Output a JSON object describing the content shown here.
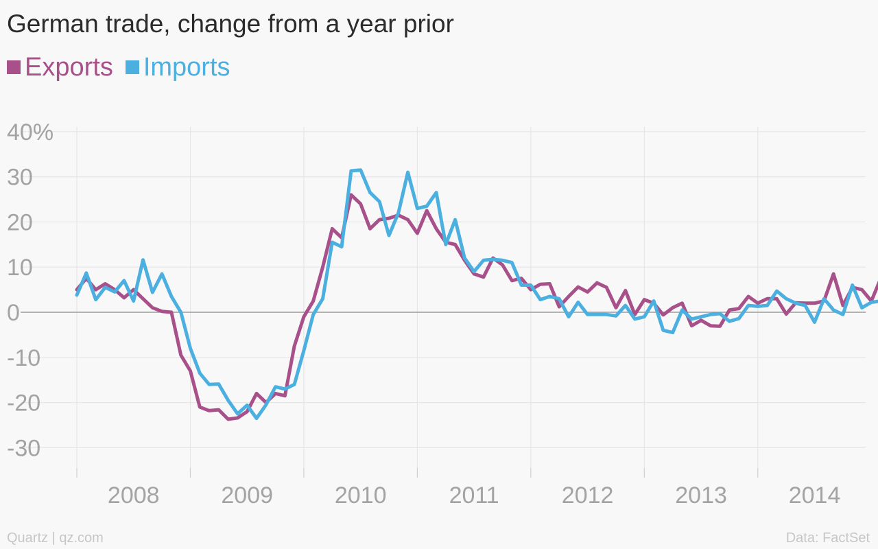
{
  "title": "German trade, change from a year prior",
  "legend": [
    {
      "label": "Exports",
      "color": "#a8508a"
    },
    {
      "label": "Imports",
      "color": "#4bafe0"
    }
  ],
  "footer": {
    "source_left": "Quartz | qz.com",
    "source_right": "Data: FactSet"
  },
  "chart_data": {
    "type": "line",
    "title": "German trade, change from a year prior",
    "xlabel": "",
    "ylabel": "",
    "x_ticks": [
      "2008",
      "2009",
      "2010",
      "2011",
      "2012",
      "2013",
      "2014"
    ],
    "y_ticks": [
      {
        "value": 40,
        "label": "40%"
      },
      {
        "value": 30,
        "label": "30"
      },
      {
        "value": 20,
        "label": "20"
      },
      {
        "value": 10,
        "label": "10"
      },
      {
        "value": 0,
        "label": "0"
      },
      {
        "value": -10,
        "label": "-10"
      },
      {
        "value": -20,
        "label": "-20"
      },
      {
        "value": -30,
        "label": "-30"
      }
    ],
    "ylim": [
      -35,
      42
    ],
    "xlim": [
      2008,
      2014.95
    ],
    "grid": true,
    "legend_position": "top-left",
    "x_start": "2008-01",
    "x_step": "monthly",
    "series": [
      {
        "name": "Exports",
        "color": "#a8508a",
        "values": [
          5,
          7.5,
          5,
          6.3,
          5,
          3.2,
          5,
          3,
          1,
          0.2,
          0,
          -9.5,
          -13,
          -21,
          -21.8,
          -21.6,
          -23.7,
          -23.4,
          -22,
          -18,
          -20,
          -18,
          -18.5,
          -7.5,
          -1,
          2.5,
          10,
          18.5,
          16.5,
          26,
          24,
          18.5,
          20.5,
          20.8,
          21.5,
          20.5,
          17.5,
          22.5,
          18.5,
          15.5,
          15,
          11.5,
          8.5,
          7.8,
          12,
          10.5,
          7,
          7.5,
          5,
          6.2,
          6.3,
          1.2,
          3.5,
          5.6,
          4.5,
          6.5,
          5.5,
          1,
          4.8,
          -0.5,
          2.8,
          2,
          -0.6,
          1,
          2,
          -3,
          -1.8,
          -3,
          -3.1,
          0.5,
          0.8,
          3.5,
          2,
          3,
          3,
          -0.4,
          2.1,
          2,
          2,
          2.5,
          8.5,
          1.5,
          5.5,
          5,
          2.5,
          7.5
        ]
      },
      {
        "name": "Imports",
        "color": "#4bafe0",
        "values": [
          3.8,
          8.7,
          2.8,
          5.5,
          4.5,
          7,
          2.5,
          11.6,
          4.4,
          8.5,
          3.5,
          0,
          -8,
          -13.5,
          -16,
          -15.9,
          -19.5,
          -22.5,
          -20.6,
          -23.5,
          -20.5,
          -16.5,
          -17,
          -16,
          -8.5,
          -0.5,
          3,
          15.5,
          14.5,
          31.3,
          31.5,
          26.5,
          24.5,
          17,
          22,
          31,
          23,
          23.5,
          26.5,
          15,
          20.5,
          12,
          9,
          11.5,
          11.7,
          11.5,
          11,
          6,
          6,
          2.8,
          3.5,
          3,
          -1,
          2.2,
          -0.5,
          -0.5,
          -0.5,
          -0.8,
          1.5,
          -1.5,
          -1,
          2.5,
          -4,
          -4.5,
          0.5,
          -1.5,
          -1,
          -0.5,
          -0.3,
          -2,
          -1.4,
          1.5,
          1.3,
          1.5,
          4.7,
          3,
          2,
          1.5,
          -2.2,
          3,
          0.5,
          -0.5,
          6,
          1,
          2.2,
          2.5
        ]
      }
    ]
  }
}
